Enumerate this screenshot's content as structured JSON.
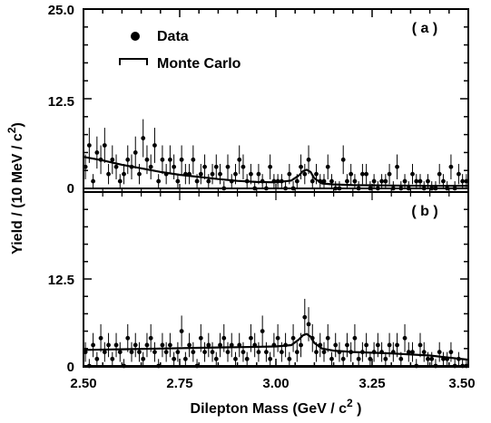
{
  "chart_data": [
    {
      "type": "scatter",
      "panel_label": "( a )",
      "xlabel": "Dilepton Mass (GeV / c",
      "xlabel_sup": "2",
      "xlabel_end": " )",
      "ylabel": "Yield / (10 MeV / c",
      "ylabel_sup": "2",
      "ylabel_end": ")",
      "xlim": [
        2.5,
        3.5
      ],
      "ylim": [
        0,
        25
      ],
      "y_ticks": [
        "0",
        "12.5",
        "25.0"
      ],
      "legend": {
        "data_label": "Data",
        "mc_label": "Monte Carlo",
        "position": "top-left"
      },
      "series": [
        {
          "name": "Data",
          "x": [
            2.505,
            2.515,
            2.525,
            2.535,
            2.545,
            2.555,
            2.565,
            2.575,
            2.585,
            2.595,
            2.605,
            2.615,
            2.625,
            2.635,
            2.645,
            2.655,
            2.665,
            2.675,
            2.685,
            2.695,
            2.705,
            2.715,
            2.725,
            2.735,
            2.745,
            2.755,
            2.765,
            2.775,
            2.785,
            2.795,
            2.805,
            2.815,
            2.825,
            2.835,
            2.845,
            2.855,
            2.865,
            2.875,
            2.885,
            2.895,
            2.905,
            2.915,
            2.925,
            2.935,
            2.945,
            2.955,
            2.965,
            2.975,
            2.985,
            2.995,
            3.005,
            3.015,
            3.025,
            3.035,
            3.045,
            3.055,
            3.065,
            3.075,
            3.085,
            3.095,
            3.105,
            3.115,
            3.125,
            3.135,
            3.145,
            3.155,
            3.165,
            3.175,
            3.185,
            3.195,
            3.205,
            3.215,
            3.225,
            3.235,
            3.245,
            3.255,
            3.265,
            3.275,
            3.285,
            3.295,
            3.305,
            3.315,
            3.325,
            3.335,
            3.345,
            3.355,
            3.365,
            3.375,
            3.385,
            3.395,
            3.405,
            3.415,
            3.425,
            3.435,
            3.445,
            3.455,
            3.465,
            3.475,
            3.485,
            3.495
          ],
          "y": [
            3,
            6,
            1,
            5,
            4,
            6,
            2,
            4,
            3,
            1,
            2,
            4,
            3,
            5,
            2,
            7,
            4,
            3,
            6,
            1,
            4,
            2,
            4,
            3,
            1,
            4,
            2,
            2,
            4,
            1,
            2,
            3,
            1,
            2,
            3,
            2,
            0,
            3,
            1,
            2,
            4,
            3,
            1,
            2,
            0,
            2,
            1,
            0,
            3,
            1,
            1,
            1,
            0,
            2,
            0,
            1,
            3,
            2,
            4,
            1,
            2,
            1,
            1,
            3,
            1,
            0,
            0,
            4,
            1,
            2,
            1,
            0,
            2,
            2,
            0,
            1,
            0,
            1,
            1,
            2,
            0,
            3,
            0,
            1,
            0,
            2,
            1,
            1,
            0,
            1,
            0,
            0,
            2,
            1,
            0,
            3,
            0,
            2,
            1,
            1
          ]
        },
        {
          "name": "Monte Carlo",
          "x": [
            2.5,
            2.55,
            2.6,
            2.65,
            2.7,
            2.75,
            2.8,
            2.85,
            2.9,
            2.95,
            3.0,
            3.04,
            3.06,
            3.07,
            3.08,
            3.09,
            3.1,
            3.12,
            3.15,
            3.2,
            3.3,
            3.4,
            3.5
          ],
          "y": [
            4.4,
            3.9,
            3.3,
            2.8,
            2.3,
            1.9,
            1.6,
            1.3,
            1.05,
            0.9,
            0.85,
            1.1,
            1.8,
            2.4,
            2.6,
            2.3,
            1.4,
            0.7,
            0.55,
            0.45,
            0.4,
            0.35,
            0.35
          ]
        }
      ]
    },
    {
      "type": "scatter",
      "panel_label": "( b )",
      "xlim": [
        2.5,
        3.5
      ],
      "ylim": [
        0,
        25
      ],
      "x_ticks": [
        "2.50",
        "2.75",
        "3.00",
        "3.25",
        "3.50"
      ],
      "y_ticks": [
        "0",
        "12.5"
      ],
      "series": [
        {
          "name": "Data",
          "x": [
            2.505,
            2.515,
            2.525,
            2.535,
            2.545,
            2.555,
            2.565,
            2.575,
            2.585,
            2.595,
            2.605,
            2.615,
            2.625,
            2.635,
            2.645,
            2.655,
            2.665,
            2.675,
            2.685,
            2.695,
            2.705,
            2.715,
            2.725,
            2.735,
            2.745,
            2.755,
            2.765,
            2.775,
            2.785,
            2.795,
            2.805,
            2.815,
            2.825,
            2.835,
            2.845,
            2.855,
            2.865,
            2.875,
            2.885,
            2.895,
            2.905,
            2.915,
            2.925,
            2.935,
            2.945,
            2.955,
            2.965,
            2.975,
            2.985,
            2.995,
            3.005,
            3.015,
            3.025,
            3.035,
            3.045,
            3.055,
            3.065,
            3.075,
            3.085,
            3.095,
            3.105,
            3.115,
            3.125,
            3.135,
            3.145,
            3.155,
            3.165,
            3.175,
            3.185,
            3.195,
            3.205,
            3.215,
            3.225,
            3.235,
            3.245,
            3.255,
            3.265,
            3.275,
            3.285,
            3.295,
            3.305,
            3.315,
            3.325,
            3.335,
            3.345,
            3.355,
            3.365,
            3.375,
            3.385,
            3.395,
            3.405,
            3.415,
            3.425,
            3.435,
            3.445,
            3.455,
            3.465,
            3.475,
            3.485,
            3.495
          ],
          "y": [
            2,
            0,
            3,
            1,
            4,
            2,
            3,
            1,
            3,
            2,
            0,
            4,
            2,
            3,
            2,
            1,
            3,
            4,
            2,
            0,
            3,
            2,
            3,
            1,
            2,
            5,
            1,
            3,
            2,
            0,
            4,
            2,
            3,
            2,
            1,
            3,
            4,
            2,
            3,
            1,
            3,
            2,
            1,
            4,
            3,
            2,
            5,
            2,
            1,
            3,
            4,
            2,
            3,
            1,
            4,
            2,
            3,
            7,
            6,
            4,
            2,
            3,
            2,
            4,
            1,
            3,
            2,
            1,
            3,
            2,
            4,
            1,
            2,
            3,
            1,
            2,
            3,
            2,
            1,
            3,
            2,
            3,
            1,
            4,
            2,
            2,
            0,
            3,
            2,
            1,
            1,
            0,
            2,
            1,
            1,
            2,
            0,
            1,
            0,
            0
          ]
        },
        {
          "name": "Monte Carlo",
          "x": [
            2.5,
            2.6,
            2.7,
            2.8,
            2.9,
            3.0,
            3.04,
            3.06,
            3.07,
            3.08,
            3.09,
            3.1,
            3.12,
            3.15,
            3.2,
            3.3,
            3.4,
            3.45,
            3.5
          ],
          "y": [
            2.3,
            2.4,
            2.5,
            2.6,
            2.7,
            2.8,
            3.0,
            3.8,
            4.4,
            4.6,
            4.2,
            3.3,
            2.5,
            2.2,
            2.0,
            1.8,
            1.5,
            1.2,
            0.9
          ]
        }
      ]
    }
  ]
}
